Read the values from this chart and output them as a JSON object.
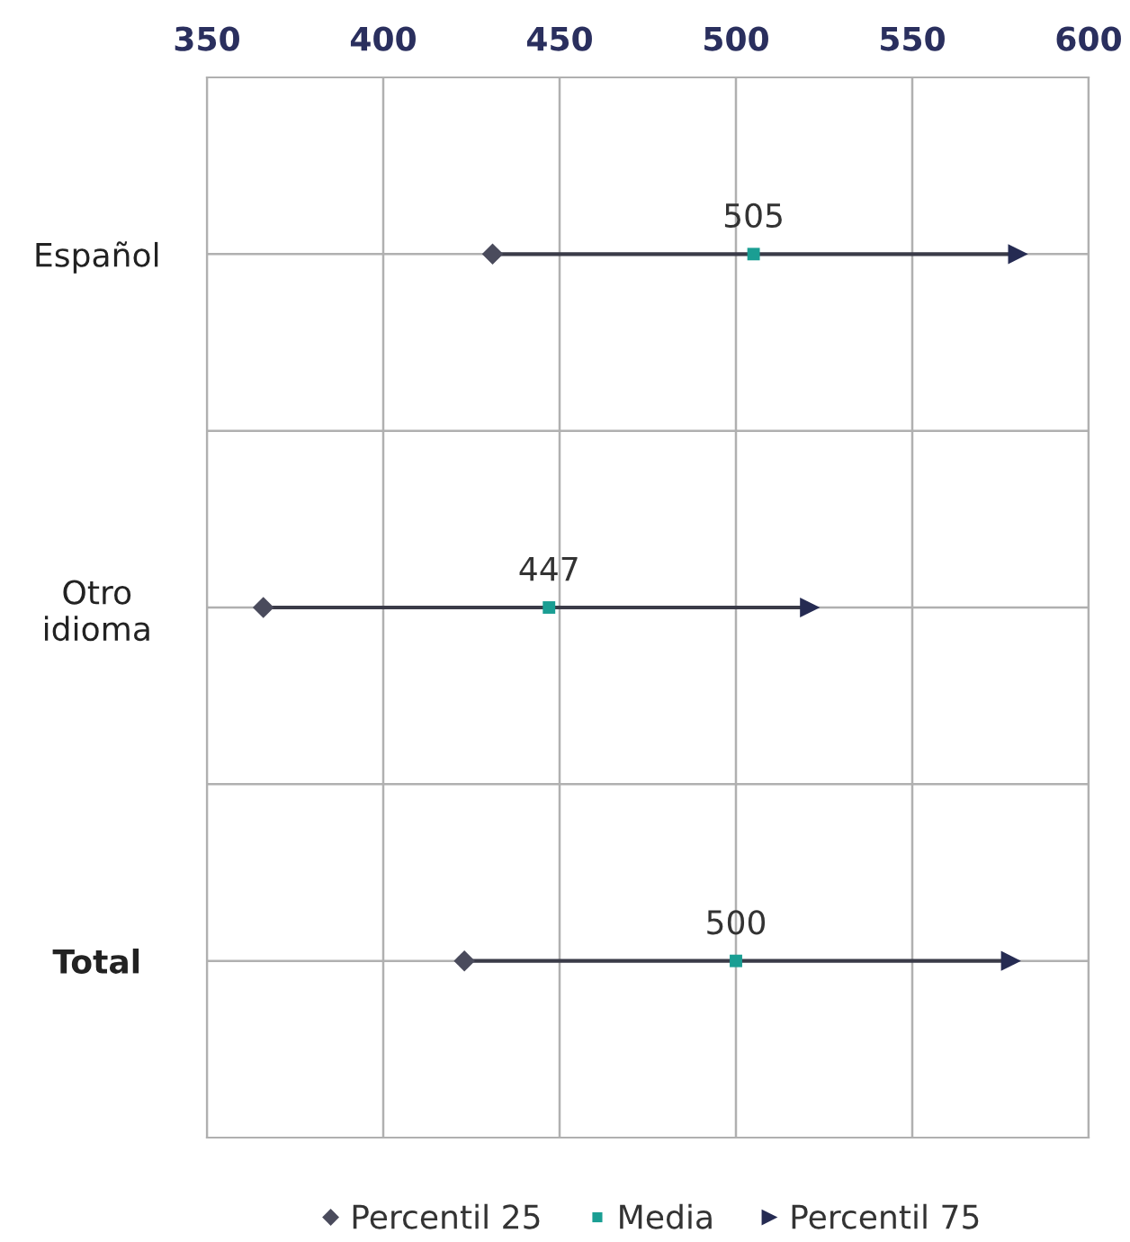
{
  "chart_data": {
    "type": "scatter",
    "orientation": "horizontal",
    "categories": [
      "Español",
      "Otro\nidioma",
      "Total"
    ],
    "series": [
      {
        "name": "Percentil 25",
        "color": "#4a4b5c",
        "marker": "diamond",
        "values": [
          431,
          366,
          423
        ]
      },
      {
        "name": "Media",
        "color": "#1a9e93",
        "marker": "square",
        "values": [
          505,
          447,
          500
        ],
        "value_labels": [
          "505",
          "447",
          "500"
        ]
      },
      {
        "name": "Percentil 75",
        "color": "#252b52",
        "marker": "triangle",
        "values": [
          580,
          521,
          578
        ]
      }
    ],
    "xlim": [
      350,
      600
    ],
    "xticks": [
      350,
      400,
      450,
      500,
      550,
      600
    ],
    "grid": true,
    "legend": "bottom"
  }
}
